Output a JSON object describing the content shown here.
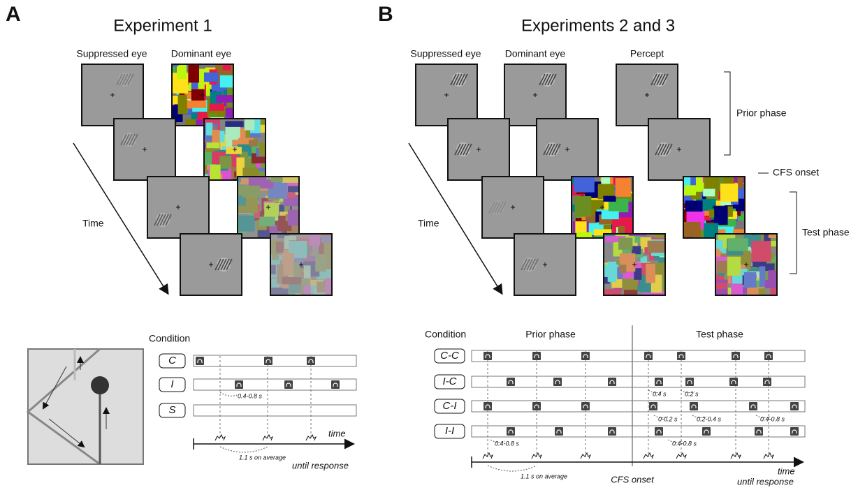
{
  "panel_a": {
    "letter": "A",
    "title": "Experiment 1",
    "eye_labels": [
      "Suppressed eye",
      "Dominant eye"
    ],
    "time_label": "Time",
    "condition_header": "Condition",
    "conditions": [
      "C",
      "I",
      "S"
    ],
    "interval_label": "0.4-0.8 s",
    "average_label": "1.1 s on average",
    "axis_label": "time",
    "axis_sublabel": "until response"
  },
  "panel_b": {
    "letter": "B",
    "title": "Experiments 2 and 3",
    "eye_labels": [
      "Suppressed eye",
      "Dominant eye",
      "Percept"
    ],
    "time_label": "Time",
    "phase_labels": [
      "Prior phase",
      "Test phase"
    ],
    "cfs_onset": "CFS onset",
    "condition_header": "Condition",
    "timeline_phases": [
      "Prior phase",
      "Test phase"
    ],
    "conditions": [
      "C-C",
      "I-C",
      "C-I",
      "I-I"
    ],
    "intervals": [
      "0.4 s",
      "0.2 s",
      "0-0.2 s",
      "0.2-0.4 s",
      "0.4-0.8 s",
      "0.4-0.8 s",
      "0.4-0.8 s"
    ],
    "average_label": "1.1 s on average",
    "cfs_axis_label": "CFS onset",
    "axis_label": "time",
    "axis_sublabel": "until response"
  }
}
